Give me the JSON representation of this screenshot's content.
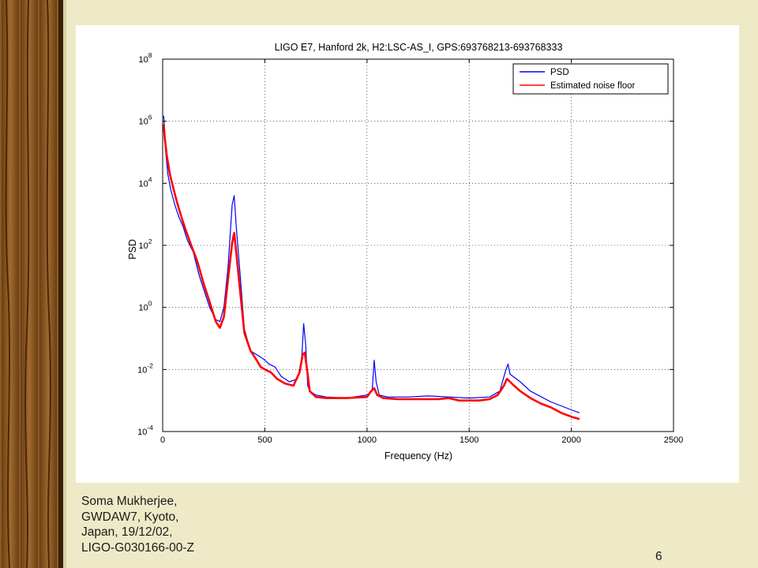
{
  "footer": {
    "line1": "Soma Mukherjee,",
    "line2": "GWDAW7, Kyoto,",
    "line3": "Japan, 19/12/02,",
    "line4": "LIGO-G030166-00-Z"
  },
  "page_number": "6",
  "colors": {
    "background": "#eeeac8",
    "wood": "#8a5a24",
    "psd": "#0000ff",
    "noise_floor": "#ff0000"
  },
  "chart_data": {
    "type": "line",
    "title": "LIGO E7, Hanford 2k, H2:LSC-AS_I, GPS:693768213-693768333",
    "xlabel": "Frequency (Hz)",
    "ylabel": "PSD",
    "xlim": [
      0,
      2500
    ],
    "ylim": [
      0.0001,
      100000000
    ],
    "yscale": "log",
    "grid": true,
    "legend_position": "top-right",
    "x_ticks": [
      "0",
      "500",
      "1000",
      "1500",
      "2000",
      "2500"
    ],
    "y_ticks": [
      {
        "base": "10",
        "exp": "8"
      },
      {
        "base": "10",
        "exp": "6"
      },
      {
        "base": "10",
        "exp": "4"
      },
      {
        "base": "10",
        "exp": "2"
      },
      {
        "base": "10",
        "exp": "0"
      },
      {
        "base": "10",
        "exp": "-2"
      },
      {
        "base": "10",
        "exp": "-4"
      }
    ],
    "x_tick_values": [
      0,
      500,
      1000,
      1500,
      2000,
      2500
    ],
    "y_tick_values": [
      100000000,
      1000000,
      10000,
      100,
      1,
      0.01,
      0.0001
    ],
    "series": [
      {
        "name": "PSD",
        "color": "#0000ff",
        "x": [
          5,
          8,
          15,
          25,
          40,
          60,
          80,
          100,
          120,
          150,
          180,
          200,
          230,
          260,
          280,
          300,
          320,
          340,
          350,
          360,
          380,
          400,
          430,
          460,
          480,
          500,
          520,
          550,
          580,
          620,
          660,
          680,
          690,
          700,
          710,
          720,
          750,
          800,
          900,
          1000,
          1025,
          1035,
          1045,
          1060,
          1100,
          1200,
          1300,
          1400,
          1500,
          1600,
          1650,
          1680,
          1690,
          1700,
          1750,
          1800,
          1900,
          2000,
          2040
        ],
        "y": [
          1500000,
          800000,
          100000,
          20000,
          6000,
          2000,
          800,
          400,
          150,
          60,
          10,
          4,
          1,
          0.4,
          0.35,
          1,
          20,
          2000,
          4000,
          400,
          10,
          0.2,
          0.04,
          0.03,
          0.025,
          0.02,
          0.015,
          0.012,
          0.006,
          0.004,
          0.005,
          0.02,
          0.3,
          0.06,
          0.003,
          0.002,
          0.0015,
          0.0013,
          0.0012,
          0.0015,
          0.002,
          0.02,
          0.004,
          0.0015,
          0.0013,
          0.0013,
          0.0014,
          0.0013,
          0.0012,
          0.0013,
          0.002,
          0.01,
          0.015,
          0.007,
          0.004,
          0.002,
          0.0009,
          0.0005,
          0.0004
        ]
      },
      {
        "name": "Estimated noise floor",
        "color": "#ff0000",
        "x": [
          5,
          10,
          20,
          35,
          50,
          70,
          90,
          110,
          140,
          170,
          200,
          230,
          260,
          280,
          300,
          320,
          340,
          350,
          360,
          380,
          400,
          430,
          460,
          480,
          500,
          530,
          560,
          600,
          640,
          670,
          685,
          695,
          705,
          720,
          750,
          800,
          900,
          1000,
          1020,
          1035,
          1050,
          1080,
          1150,
          1250,
          1350,
          1400,
          1450,
          1500,
          1550,
          1600,
          1640,
          1670,
          1685,
          1700,
          1720,
          1750,
          1800,
          1850,
          1900,
          1950,
          2000,
          2040
        ],
        "y": [
          800000,
          300000,
          80000,
          20000,
          8000,
          2500,
          900,
          350,
          100,
          30,
          6,
          1.5,
          0.35,
          0.22,
          0.5,
          8,
          120,
          250,
          60,
          3,
          0.15,
          0.04,
          0.02,
          0.012,
          0.01,
          0.008,
          0.005,
          0.0035,
          0.003,
          0.008,
          0.03,
          0.035,
          0.012,
          0.002,
          0.0013,
          0.0012,
          0.0012,
          0.0013,
          0.002,
          0.0025,
          0.0015,
          0.0012,
          0.0011,
          0.0011,
          0.0011,
          0.0012,
          0.001,
          0.001,
          0.001,
          0.0011,
          0.0015,
          0.003,
          0.005,
          0.004,
          0.003,
          0.002,
          0.0012,
          0.0008,
          0.0006,
          0.0004,
          0.0003,
          0.00025
        ]
      }
    ]
  }
}
